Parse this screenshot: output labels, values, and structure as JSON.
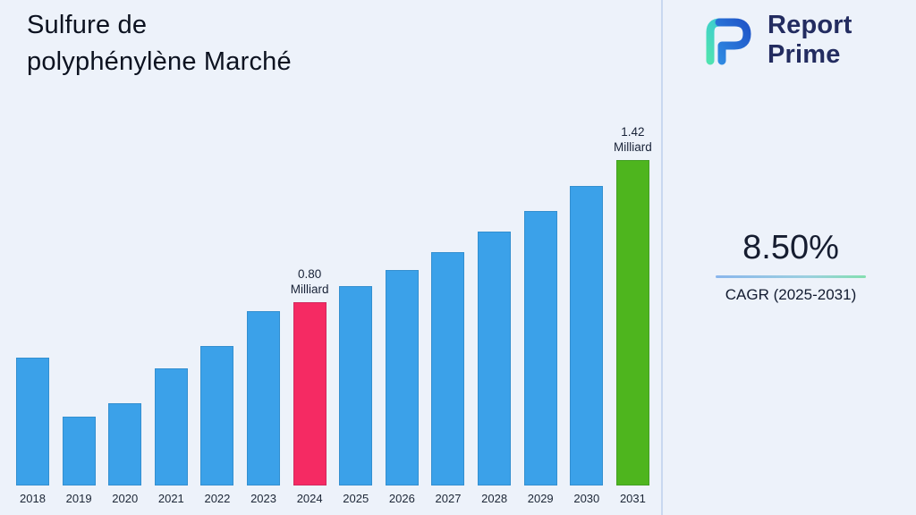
{
  "header": {
    "title_line1": "Sulfure de",
    "title_line2": "polyphénylène Marché"
  },
  "brand": {
    "name_line1": "Report",
    "name_line2": "Prime",
    "navy": "#232C60"
  },
  "cagr": {
    "value": "8.50%",
    "label": "CAGR (2025-2031)"
  },
  "chart_data": {
    "type": "bar",
    "title": "Sulfure de polyphénylène Marché",
    "unit": "Milliard",
    "categories": [
      "2018",
      "2019",
      "2020",
      "2021",
      "2022",
      "2023",
      "2024",
      "2025",
      "2026",
      "2027",
      "2028",
      "2029",
      "2030",
      "2031"
    ],
    "values": [
      0.56,
      0.3,
      0.36,
      0.51,
      0.61,
      0.76,
      0.8,
      0.87,
      0.94,
      1.02,
      1.11,
      1.2,
      1.31,
      1.42
    ],
    "annotations": {
      "2024": {
        "value": "0.80",
        "unit": "Milliard"
      },
      "2031": {
        "value": "1.42",
        "unit": "Milliard"
      }
    },
    "colors": {
      "default": "#3BA1E9",
      "highlight": {
        "2024": "#F52A63",
        "2031": "#4EB51E"
      }
    },
    "xlabel": "",
    "ylabel": "",
    "ylim": [
      0,
      1.5
    ],
    "grid": false,
    "legend": false
  }
}
